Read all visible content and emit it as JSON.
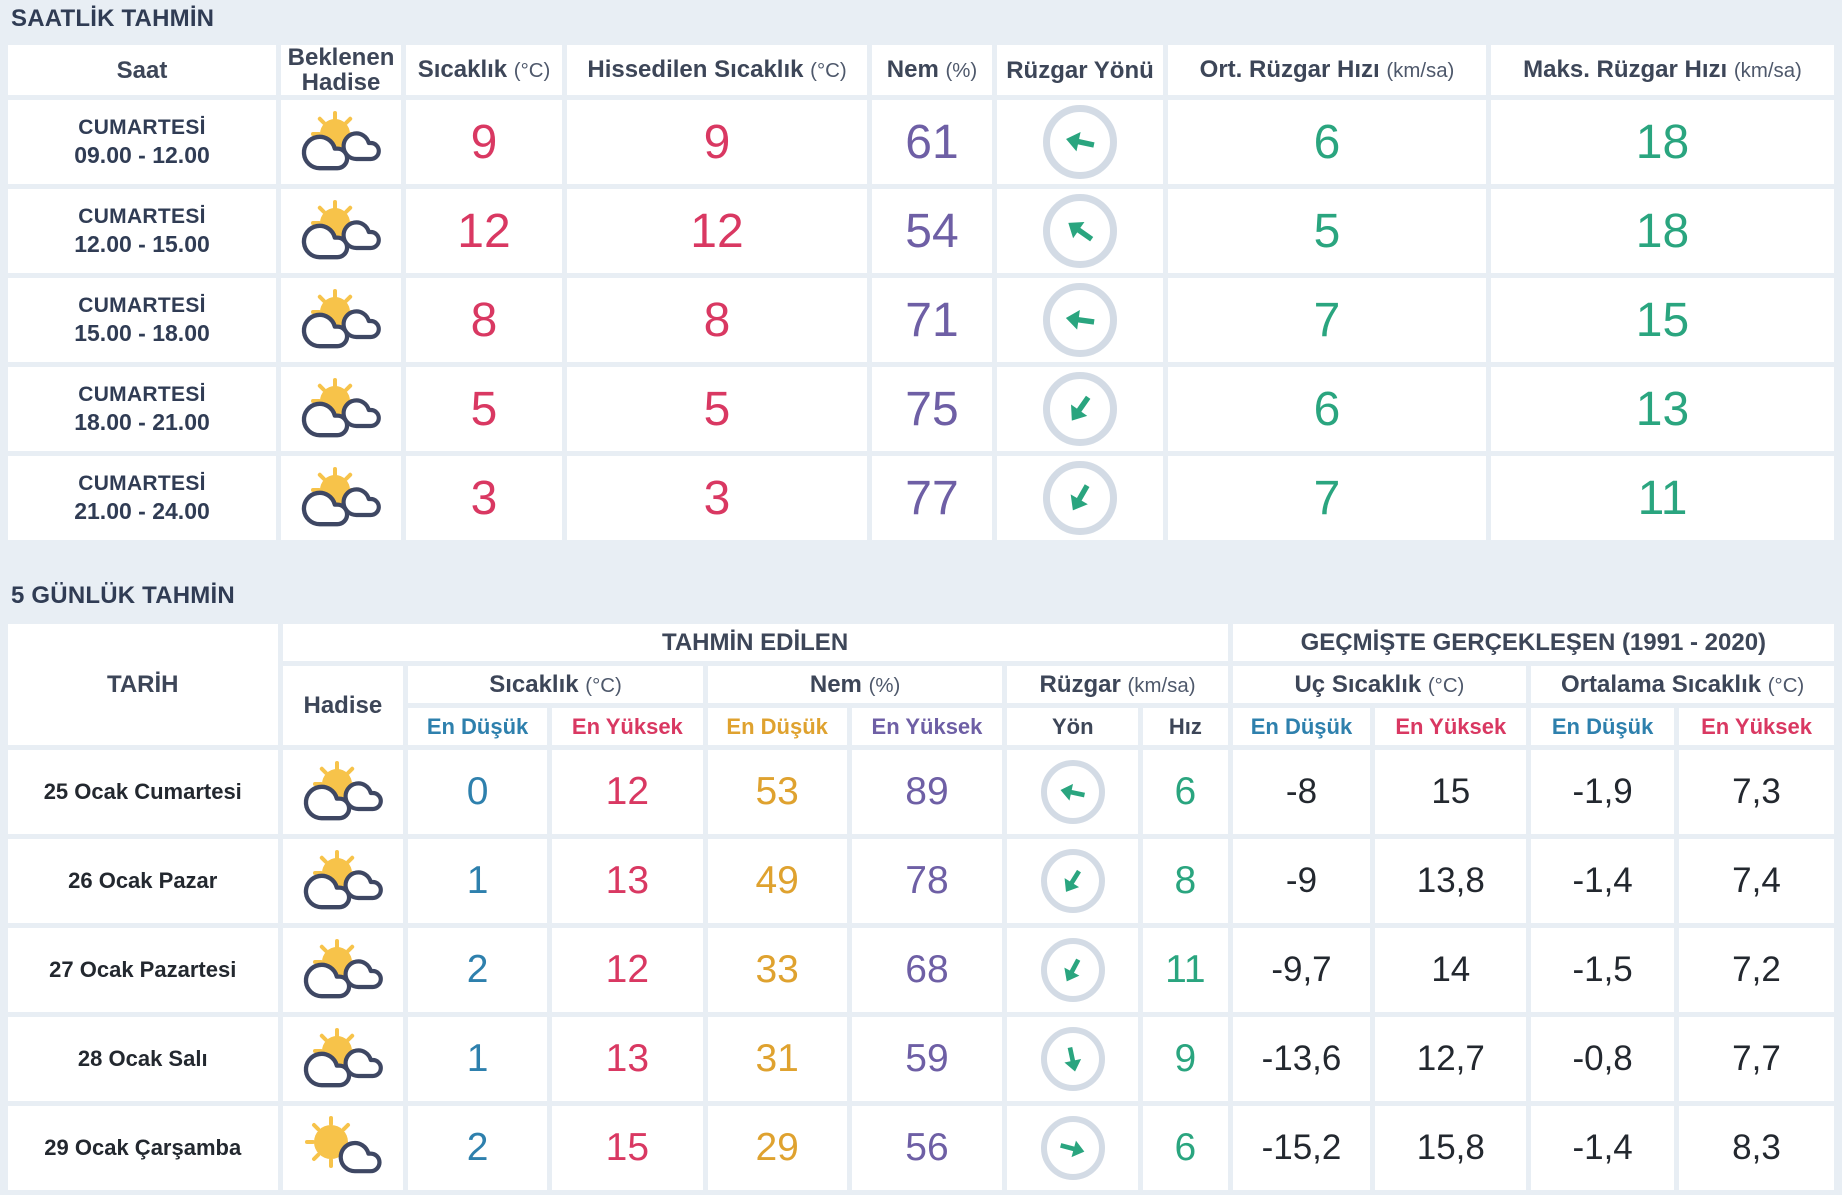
{
  "colors": {
    "page_background": "#e8eef4",
    "cell_background": "#ffffff",
    "title_text": "#303c54",
    "temperature_red": "#d93862",
    "min_blue": "#2e80ad",
    "humidity_low_orange": "#dfa22f",
    "humidity_purple": "#6e5fa5",
    "wind_green": "#2aa57f",
    "historical_dark": "#23282f",
    "wind_circle_border": "#d3dbe5",
    "sun_yellow": "#f7c34a",
    "cloud_outline": "#3e4763"
  },
  "hourly": {
    "title": "SAATLİK TAHMİN",
    "columns": {
      "saat": "Saat",
      "hadise": "Beklenen\nHadise",
      "sicaklik": {
        "label": "Sıcaklık ",
        "unit": "(°C)"
      },
      "hissedilen": {
        "label": "Hissedilen Sıcaklık ",
        "unit": "(°C)"
      },
      "nem": {
        "label": "Nem ",
        "unit": "(%)"
      },
      "ruzgar_yonu": "Rüzgar Yönü",
      "ort_ruzgar": {
        "label": "Ort. Rüzgar Hızı ",
        "unit": "(km/sa)"
      },
      "maks_ruzgar": {
        "label": "Maks. Rüzgar Hızı ",
        "unit": "(km/sa)"
      }
    },
    "rows": [
      {
        "day": "CUMARTESİ",
        "time": "09.00 - 12.00",
        "icon": "sun-two-clouds",
        "temp": "9",
        "feels_like": "9",
        "humidity": "61",
        "wind_dir_deg": -168,
        "avg_wind_speed": "6",
        "max_wind_speed": "18"
      },
      {
        "day": "CUMARTESİ",
        "time": "12.00 - 15.00",
        "icon": "sun-two-clouds",
        "temp": "12",
        "feels_like": "12",
        "humidity": "54",
        "wind_dir_deg": -145,
        "avg_wind_speed": "5",
        "max_wind_speed": "18"
      },
      {
        "day": "CUMARTESİ",
        "time": "15.00 - 18.00",
        "icon": "sun-two-clouds",
        "temp": "8",
        "feels_like": "8",
        "humidity": "71",
        "wind_dir_deg": -172,
        "avg_wind_speed": "7",
        "max_wind_speed": "15"
      },
      {
        "day": "CUMARTESİ",
        "time": "18.00 - 21.00",
        "icon": "sun-two-clouds",
        "temp": "5",
        "feels_like": "5",
        "humidity": "75",
        "wind_dir_deg": 125,
        "avg_wind_speed": "6",
        "max_wind_speed": "13"
      },
      {
        "day": "CUMARTESİ",
        "time": "21.00 - 24.00",
        "icon": "sun-two-clouds",
        "temp": "3",
        "feels_like": "3",
        "humidity": "77",
        "wind_dir_deg": 120,
        "avg_wind_speed": "7",
        "max_wind_speed": "11"
      }
    ]
  },
  "daily": {
    "title": "5 GÜNLÜK TAHMİN",
    "headers": {
      "tarih": "TARİH",
      "tahmin_edilen": "TAHMİN EDİLEN",
      "gecmiste": "GEÇMİŞTE GERÇEKLEŞEN (1991 - 2020)",
      "hadise": "Hadise",
      "sicaklik": {
        "label": "Sıcaklık ",
        "unit": "(°C)"
      },
      "nem": {
        "label": "Nem ",
        "unit": "(%)"
      },
      "ruzgar": {
        "label": "Rüzgar ",
        "unit": "(km/sa)"
      },
      "uc_sicaklik": {
        "label": "Uç Sıcaklık ",
        "unit": "(°C)"
      },
      "ortalama_sicaklik": {
        "label": "Ortalama Sıcaklık ",
        "unit": "(°C)"
      },
      "en_dusuk": "En Düşük",
      "en_yuksek": "En Yüksek",
      "yon": "Yön",
      "hiz": "Hız"
    },
    "rows": [
      {
        "date": "25 Ocak Cumartesi",
        "icon": "sun-two-clouds",
        "temp_min": "0",
        "temp_max": "12",
        "hum_min": "53",
        "hum_max": "89",
        "wind_dir_deg": -168,
        "wind_speed": "6",
        "ext_min": "-8",
        "ext_max": "15",
        "avg_min": "-1,9",
        "avg_max": "7,3"
      },
      {
        "date": "26 Ocak Pazar",
        "icon": "sun-two-clouds",
        "temp_min": "1",
        "temp_max": "13",
        "hum_min": "49",
        "hum_max": "78",
        "wind_dir_deg": 122,
        "wind_speed": "8",
        "ext_min": "-9",
        "ext_max": "13,8",
        "avg_min": "-1,4",
        "avg_max": "7,4"
      },
      {
        "date": "27 Ocak Pazartesi",
        "icon": "sun-two-clouds",
        "temp_min": "2",
        "temp_max": "12",
        "hum_min": "33",
        "hum_max": "68",
        "wind_dir_deg": 118,
        "wind_speed": "11",
        "ext_min": "-9,7",
        "ext_max": "14",
        "avg_min": "-1,5",
        "avg_max": "7,2"
      },
      {
        "date": "28 Ocak Salı",
        "icon": "sun-two-clouds",
        "temp_min": "1",
        "temp_max": "13",
        "hum_min": "31",
        "hum_max": "59",
        "wind_dir_deg": 78,
        "wind_speed": "9",
        "ext_min": "-13,6",
        "ext_max": "12,7",
        "avg_min": "-0,8",
        "avg_max": "7,7"
      },
      {
        "date": "29 Ocak Çarşamba",
        "icon": "sun-one-cloud",
        "temp_min": "2",
        "temp_max": "15",
        "hum_min": "29",
        "hum_max": "56",
        "wind_dir_deg": 15,
        "wind_speed": "6",
        "ext_min": "-15,2",
        "ext_max": "15,8",
        "avg_min": "-1,4",
        "avg_max": "8,3"
      }
    ]
  }
}
